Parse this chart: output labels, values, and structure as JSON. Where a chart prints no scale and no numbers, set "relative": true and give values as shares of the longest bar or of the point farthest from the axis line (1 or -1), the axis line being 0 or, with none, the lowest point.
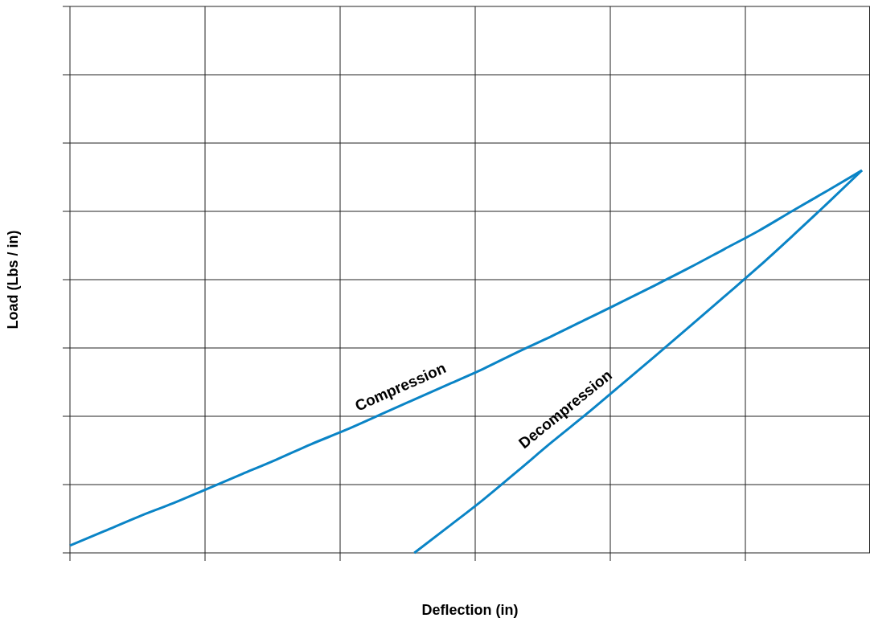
{
  "chart_data": {
    "type": "line",
    "relative": true,
    "xlabel": "Deflection (in)",
    "ylabel": "Load (Lbs / in)",
    "categories": [
      null,
      null,
      null,
      null,
      null,
      null,
      null,
      null,
      null,
      null,
      null,
      null,
      null,
      null,
      null,
      null,
      null,
      null,
      null,
      null,
      null,
      null,
      null,
      null
    ],
    "series": [
      {
        "name": "Compression",
        "color": "#0a84c6",
        "values": [
          0.019,
          0.057,
          0.095,
          0.13,
          0.168,
          0.206,
          0.244,
          0.284,
          0.321,
          0.361,
          0.401,
          0.441,
          0.481,
          0.525,
          0.567,
          0.611,
          0.655,
          0.7,
          0.746,
          0.794,
          0.842,
          0.895,
          0.947,
          1
        ]
      },
      {
        "name": "Decompression",
        "color": "#0a84c6",
        "values": [
          null,
          null,
          null,
          null,
          null,
          null,
          null,
          null,
          null,
          null,
          0,
          0.069,
          0.139,
          0.214,
          0.29,
          0.363,
          0.439,
          0.515,
          0.592,
          0.67,
          0.748,
          0.83,
          0.914,
          1
        ]
      }
    ],
    "grid": true,
    "marker": "none",
    "line_style": "solid"
  }
}
